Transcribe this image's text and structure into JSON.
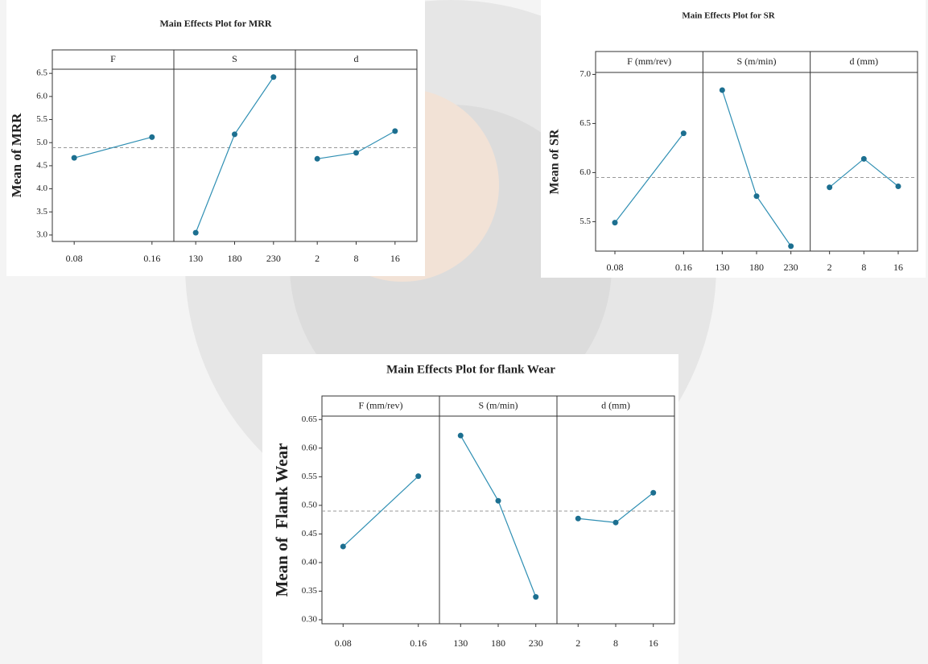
{
  "chart_data": [
    {
      "type": "line",
      "title": "Main Effects Plot for MRR",
      "y_label": "Mean of MRR",
      "ylim": [
        2.86,
        6.59
      ],
      "yticks": [
        {
          "value": 3,
          "label": "3.0"
        },
        3.5,
        {
          "value": 4,
          "label": "4.0"
        },
        4.5,
        {
          "value": 5,
          "label": "5.0"
        },
        5.5,
        {
          "value": 6,
          "label": "6.0"
        },
        6.5
      ],
      "mean_line": 4.89,
      "color": "#2f8fb3",
      "marker_color": "#1c6f90",
      "panels": [
        {
          "name": "F",
          "categories": [
            "0.08",
            "0.16"
          ],
          "values": [
            4.67,
            5.12
          ]
        },
        {
          "name": "S",
          "categories": [
            "130",
            "180",
            "230"
          ],
          "values": [
            3.05,
            5.18,
            6.42
          ]
        },
        {
          "name": "d",
          "categories": [
            "2",
            "8",
            "16"
          ],
          "values": [
            4.65,
            4.78,
            5.25
          ]
        }
      ]
    },
    {
      "type": "line",
      "title": "Main Effects Plot for SR",
      "y_label": "Mean of SR",
      "ylim": [
        5.2,
        7.02
      ],
      "yticks": [
        5.5,
        {
          "value": 6,
          "label": "6.0"
        },
        6.5,
        {
          "value": 7,
          "label": "7.0"
        }
      ],
      "mean_line": 5.95,
      "color": "#2f8fb3",
      "marker_color": "#1c6f90",
      "panels": [
        {
          "name": "F (mm/rev)",
          "categories": [
            "0.08",
            "0.16"
          ],
          "values": [
            5.49,
            6.4
          ]
        },
        {
          "name": "S (m/min)",
          "categories": [
            "130",
            "180",
            "230"
          ],
          "values": [
            6.84,
            5.76,
            5.25
          ]
        },
        {
          "name": "d (mm)",
          "categories": [
            "2",
            "8",
            "16"
          ],
          "values": [
            5.85,
            6.14,
            5.86
          ]
        }
      ]
    },
    {
      "type": "line",
      "title": "Main Effects Plot for flank Wear",
      "y_label": "Mean of  Flank Wear",
      "ylim": [
        0.293,
        0.656
      ],
      "yticks": [
        {
          "value": 0.3,
          "label": "0.30"
        },
        0.35,
        {
          "value": 0.4,
          "label": "0.40"
        },
        0.45,
        {
          "value": 0.5,
          "label": "0.50"
        },
        0.55,
        {
          "value": 0.6,
          "label": "0.60"
        },
        0.65
      ],
      "mean_line": 0.49,
      "color": "#2f8fb3",
      "marker_color": "#1c6f90",
      "panels": [
        {
          "name": "F (mm/rev)",
          "categories": [
            "0.08",
            "0.16"
          ],
          "values": [
            0.428,
            0.551
          ]
        },
        {
          "name": "S (m/min)",
          "categories": [
            "130",
            "180",
            "230"
          ],
          "values": [
            0.622,
            0.508,
            0.34
          ]
        },
        {
          "name": "d (mm)",
          "categories": [
            "2",
            "8",
            "16"
          ],
          "values": [
            0.477,
            0.47,
            0.522
          ]
        }
      ]
    }
  ]
}
